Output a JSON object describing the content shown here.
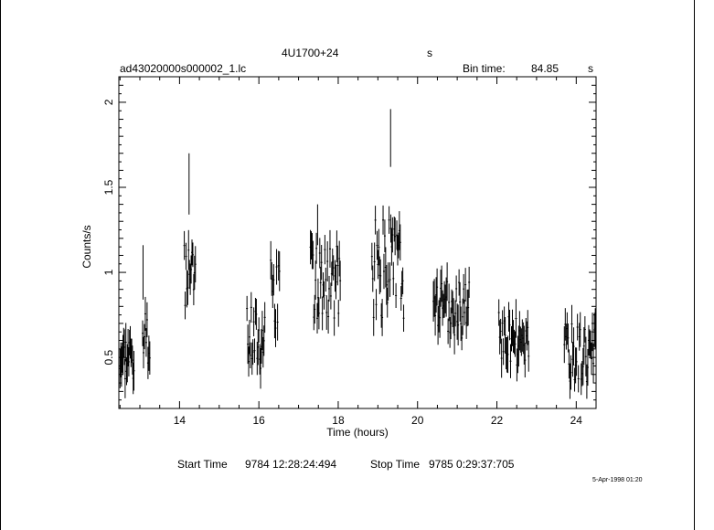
{
  "header": {
    "source": "4U1700+24",
    "source_suffix": "s",
    "file": "ad43020000s000002_1.lc",
    "bin_label": "Bin time:",
    "bin_value": "84.85",
    "bin_unit": "s"
  },
  "footer": {
    "start_label": "Start Time",
    "start_value": "9784 12:28:24:494",
    "stop_label": "Stop Time",
    "stop_value": "9785  0:29:37:705",
    "stamp": "5-Apr-1998 01:20"
  },
  "chart_data": {
    "type": "line",
    "title": "",
    "xlabel": "Time (hours)",
    "ylabel": "Counts/s",
    "xlim": [
      12.47,
      24.5
    ],
    "ylim": [
      0.2,
      2.15
    ],
    "x_ticks": [
      14,
      16,
      18,
      20,
      22,
      24
    ],
    "y_ticks": [
      0.5,
      1,
      1.5,
      2
    ],
    "y_tick_labels": [
      "0.5",
      "1",
      "1.5",
      "2"
    ],
    "segments": [
      {
        "start": 12.5,
        "end": 12.85,
        "count": 20,
        "level": 0.52,
        "amp": 0.15,
        "seed": 3
      },
      {
        "start": 13.07,
        "end": 13.25,
        "count": 9,
        "level": 0.62,
        "amp": 0.18,
        "seed": 7
      },
      {
        "start": 14.12,
        "end": 14.4,
        "count": 14,
        "level": 0.98,
        "amp": 0.22,
        "seed": 11
      },
      {
        "start": 15.7,
        "end": 16.15,
        "count": 22,
        "level": 0.62,
        "amp": 0.2,
        "seed": 17
      },
      {
        "start": 16.3,
        "end": 16.52,
        "count": 10,
        "level": 0.88,
        "amp": 0.22,
        "seed": 23
      },
      {
        "start": 17.3,
        "end": 18.05,
        "count": 36,
        "level": 0.95,
        "amp": 0.22,
        "seed": 29
      },
      {
        "start": 18.85,
        "end": 19.65,
        "count": 38,
        "level": 1.02,
        "amp": 0.3,
        "seed": 31
      },
      {
        "start": 20.4,
        "end": 21.3,
        "count": 40,
        "level": 0.78,
        "amp": 0.18,
        "seed": 37
      },
      {
        "start": 22.05,
        "end": 22.8,
        "count": 34,
        "level": 0.6,
        "amp": 0.17,
        "seed": 41
      },
      {
        "start": 23.7,
        "end": 24.48,
        "count": 34,
        "level": 0.52,
        "amp": 0.18,
        "seed": 43
      }
    ],
    "flares": [
      {
        "x": 14.24,
        "y": 1.52,
        "err": 0.18
      },
      {
        "x": 19.32,
        "y": 1.79,
        "err": 0.17
      },
      {
        "x": 17.48,
        "y": 1.28,
        "err": 0.12
      },
      {
        "x": 13.08,
        "y": 1.0,
        "err": 0.16
      }
    ]
  }
}
